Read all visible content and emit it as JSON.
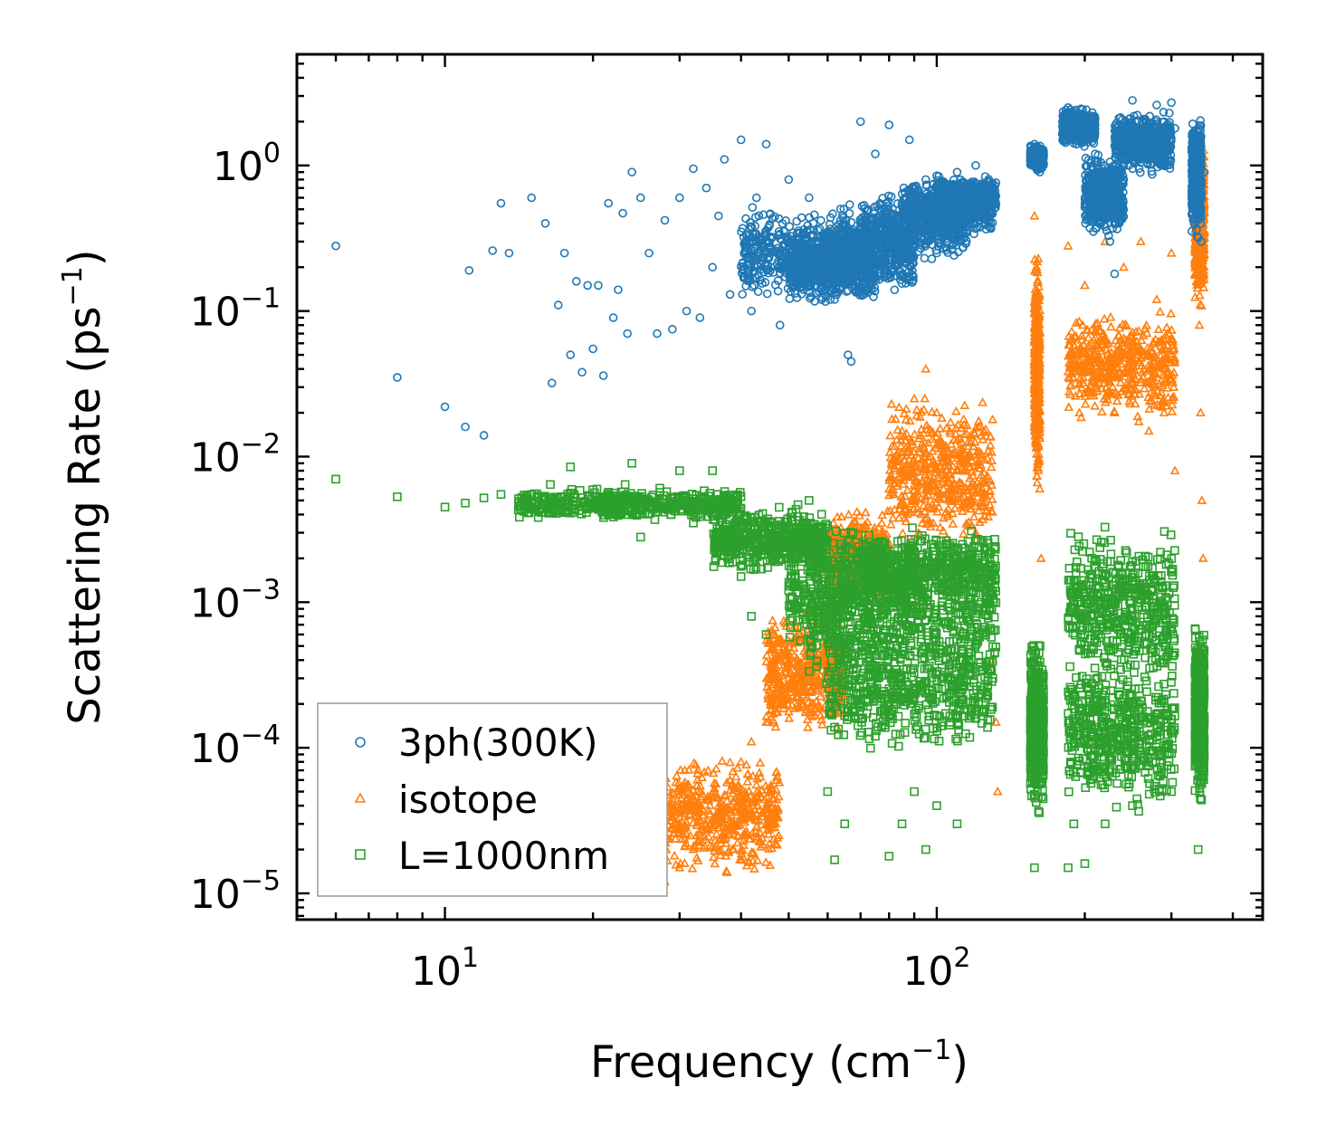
{
  "chart_data": {
    "type": "scatter",
    "title": "",
    "xlabel": "Frequency (cm",
    "xlabel_sup": "−1",
    "xlabel_end": ")",
    "ylabel": "Scattering Rate (ps",
    "ylabel_sup": "−1",
    "ylabel_end": ")",
    "xscale": "log",
    "yscale": "log",
    "xlim": [
      5,
      460
    ],
    "ylim": [
      6.6e-06,
      5.8
    ],
    "grid": false,
    "legend_position": "lower-left",
    "x_ticks": [
      {
        "value": 10,
        "base": "10",
        "exp": "1"
      },
      {
        "value": 100,
        "base": "10",
        "exp": "2"
      }
    ],
    "y_ticks": [
      {
        "value": 1,
        "base": "10",
        "exp": "0"
      },
      {
        "value": 0.1,
        "base": "10",
        "exp": "−1"
      },
      {
        "value": 0.01,
        "base": "10",
        "exp": "−2"
      },
      {
        "value": 0.001,
        "base": "10",
        "exp": "−3"
      },
      {
        "value": 0.0001,
        "base": "10",
        "exp": "−4"
      },
      {
        "value": 1e-05,
        "base": "10",
        "exp": "−5"
      }
    ],
    "series": [
      {
        "name": "3ph(300K)",
        "marker": "circle",
        "color": "#1f77b4",
        "points": [
          [
            6,
            0.28
          ],
          [
            8,
            0.035
          ],
          [
            10,
            0.022
          ],
          [
            11,
            0.016
          ],
          [
            11.2,
            0.19
          ],
          [
            12,
            0.014
          ],
          [
            12.5,
            0.26
          ],
          [
            13,
            0.55
          ],
          [
            13.5,
            0.25
          ],
          [
            15,
            0.6
          ],
          [
            16,
            0.4
          ],
          [
            16.5,
            0.032
          ],
          [
            17,
            0.11
          ],
          [
            17.5,
            0.25
          ],
          [
            18,
            0.05
          ],
          [
            18.5,
            0.16
          ],
          [
            19,
            0.038
          ],
          [
            19.5,
            0.15
          ],
          [
            20,
            0.055
          ],
          [
            20.5,
            0.15
          ],
          [
            21,
            0.036
          ],
          [
            21.5,
            0.55
          ],
          [
            22,
            0.09
          ],
          [
            22.5,
            0.14
          ],
          [
            23,
            0.47
          ],
          [
            23.5,
            0.07
          ],
          [
            24,
            0.9
          ],
          [
            25,
            0.6
          ],
          [
            26,
            0.25
          ],
          [
            27,
            0.07
          ],
          [
            28,
            0.42
          ],
          [
            29,
            0.075
          ],
          [
            30,
            0.6
          ],
          [
            31,
            0.1
          ],
          [
            32,
            0.95
          ],
          [
            33,
            0.09
          ],
          [
            34,
            0.7
          ],
          [
            35,
            0.2
          ],
          [
            36,
            0.45
          ],
          [
            37,
            1.1
          ],
          [
            38,
            0.13
          ],
          [
            40,
            1.5
          ],
          [
            41,
            0.3
          ],
          [
            42,
            0.1
          ],
          [
            43,
            0.6
          ],
          [
            45,
            1.4
          ],
          [
            46,
            0.2
          ],
          [
            48,
            0.08
          ],
          [
            50,
            0.8
          ],
          [
            52,
            0.25
          ],
          [
            55,
            0.6
          ],
          [
            57,
            0.15
          ],
          [
            60,
            0.35
          ],
          [
            62,
            0.12
          ],
          [
            65,
            0.25
          ],
          [
            66,
            0.05
          ],
          [
            67,
            0.045
          ],
          [
            70,
            2.0
          ],
          [
            72,
            0.4
          ],
          [
            75,
            1.2
          ],
          [
            78,
            0.2
          ],
          [
            80,
            1.9
          ],
          [
            85,
            0.35
          ],
          [
            88,
            1.5
          ],
          [
            90,
            0.5
          ],
          [
            95,
            0.8
          ],
          [
            100,
            0.25
          ],
          [
            105,
            0.4
          ],
          [
            110,
            0.9
          ],
          [
            115,
            0.55
          ],
          [
            120,
            1.0
          ],
          [
            125,
            0.7
          ],
          [
            130,
            0.6
          ],
          [
            158,
            1.4
          ],
          [
            160,
            1.2
          ],
          [
            162,
            0.9
          ],
          [
            185,
            2.5
          ],
          [
            190,
            2.2
          ],
          [
            200,
            1.8
          ],
          [
            210,
            1.2
          ],
          [
            220,
            0.6
          ],
          [
            225,
            0.3
          ],
          [
            230,
            0.18
          ],
          [
            235,
            0.4
          ],
          [
            240,
            0.8
          ],
          [
            250,
            2.8
          ],
          [
            260,
            1.6
          ],
          [
            270,
            1.3
          ],
          [
            280,
            2.6
          ],
          [
            290,
            2.0
          ],
          [
            300,
            2.7
          ],
          [
            305,
            1.8
          ],
          [
            340,
            0.6
          ],
          [
            345,
            0.3
          ],
          [
            350,
            0.9
          ]
        ],
        "clusters": [
          {
            "x": [
              40,
              70
            ],
            "y": [
              0.1,
              0.6
            ]
          },
          {
            "x": [
              50,
              75
            ],
            "y": [
              0.1,
              0.45
            ]
          },
          {
            "x": [
              60,
              90
            ],
            "y": [
              0.12,
              0.5
            ]
          },
          {
            "x": [
              70,
              115
            ],
            "y": [
              0.2,
              0.7
            ]
          },
          {
            "x": [
              85,
              130
            ],
            "y": [
              0.3,
              0.9
            ]
          },
          {
            "x": [
              100,
              132
            ],
            "y": [
              0.4,
              0.9
            ]
          },
          {
            "x": [
              180,
              210
            ],
            "y": [
              1.3,
              2.6
            ]
          },
          {
            "x": [
              200,
              240
            ],
            "y": [
              0.3,
              1.3
            ]
          },
          {
            "x": [
              230,
              300
            ],
            "y": [
              0.8,
              2.6
            ]
          },
          {
            "x": [
              155,
              165
            ],
            "y": [
              0.9,
              1.4
            ]
          },
          {
            "x": [
              330,
              345
            ],
            "y": [
              0.3,
              2.3
            ]
          }
        ]
      },
      {
        "name": "isotope",
        "marker": "triangle",
        "color": "#ff7f0e",
        "points": [
          [
            28,
            1.2e-05
          ],
          [
            30,
            1.5e-05
          ],
          [
            32,
            2e-05
          ],
          [
            34,
            3e-05
          ],
          [
            36,
            4.5e-05
          ],
          [
            38,
            6e-05
          ],
          [
            40,
            8e-05
          ],
          [
            42,
            0.00011
          ],
          [
            45,
            0.00015
          ],
          [
            48,
            0.00022
          ],
          [
            50,
            0.0003
          ],
          [
            55,
            0.0006
          ],
          [
            58,
            0.0008
          ],
          [
            60,
            0.0012
          ],
          [
            65,
            0.0015
          ],
          [
            70,
            0.0022
          ],
          [
            75,
            0.003
          ],
          [
            80,
            0.006
          ],
          [
            85,
            0.015
          ],
          [
            90,
            0.025
          ],
          [
            95,
            0.04
          ],
          [
            100,
            0.02
          ],
          [
            105,
            0.01
          ],
          [
            110,
            0.008
          ],
          [
            115,
            0.005
          ],
          [
            120,
            0.003
          ],
          [
            125,
            0.0015
          ],
          [
            130,
            0.0004
          ],
          [
            132,
            0.00015
          ],
          [
            133,
            5e-05
          ],
          [
            158,
            0.45
          ],
          [
            160,
            0.1
          ],
          [
            161,
            0.03
          ],
          [
            162,
            0.006
          ],
          [
            163,
            0.002
          ],
          [
            185,
            0.28
          ],
          [
            190,
            0.04
          ],
          [
            195,
            0.02
          ],
          [
            200,
            0.15
          ],
          [
            210,
            0.06
          ],
          [
            220,
            0.3
          ],
          [
            230,
            0.02
          ],
          [
            240,
            0.2
          ],
          [
            250,
            0.05
          ],
          [
            260,
            0.3
          ],
          [
            270,
            0.015
          ],
          [
            280,
            0.12
          ],
          [
            290,
            0.02
          ],
          [
            300,
            0.25
          ],
          [
            305,
            0.008
          ],
          [
            340,
            0.6
          ],
          [
            342,
            0.08
          ],
          [
            344,
            0.02
          ],
          [
            346,
            0.005
          ],
          [
            348,
            0.002
          ]
        ],
        "clusters": [
          {
            "x": [
              28,
              48
            ],
            "y": [
              1.2e-05,
              0.0001
            ]
          },
          {
            "x": [
              45,
              65
            ],
            "y": [
              0.0001,
              0.001
            ]
          },
          {
            "x": [
              60,
              80
            ],
            "y": [
              0.0008,
              0.005
            ]
          },
          {
            "x": [
              80,
              130
            ],
            "y": [
              0.002,
              0.03
            ]
          },
          {
            "x": [
              185,
              305
            ],
            "y": [
              0.015,
              0.12
            ]
          },
          {
            "x": [
              158,
              162
            ],
            "y": [
              0.005,
              0.3
            ]
          },
          {
            "x": [
              335,
              350
            ],
            "y": [
              0.1,
              1.5
            ]
          }
        ]
      },
      {
        "name": "L=1000nm",
        "marker": "square",
        "color": "#2ca02c",
        "points": [
          [
            6,
            0.007
          ],
          [
            8,
            0.0053
          ],
          [
            10,
            0.0045
          ],
          [
            11,
            0.0048
          ],
          [
            12,
            0.0052
          ],
          [
            13,
            0.0055
          ],
          [
            15,
            0.0055
          ],
          [
            17,
            0.0048
          ],
          [
            18,
            0.0085
          ],
          [
            20,
            0.0045
          ],
          [
            22,
            0.0048
          ],
          [
            24,
            0.009
          ],
          [
            25,
            0.0028
          ],
          [
            27,
            0.0045
          ],
          [
            30,
            0.008
          ],
          [
            32,
            0.0035
          ],
          [
            34,
            0.0045
          ],
          [
            35,
            0.008
          ],
          [
            38,
            0.0025
          ],
          [
            40,
            0.0015
          ],
          [
            42,
            0.0008
          ],
          [
            45,
            0.0006
          ],
          [
            48,
            0.002
          ],
          [
            50,
            0.0012
          ],
          [
            55,
            0.005
          ],
          [
            60,
            5e-05
          ],
          [
            62,
            1.7e-05
          ],
          [
            65,
            3e-05
          ],
          [
            70,
            0.0003
          ],
          [
            75,
            0.00012
          ],
          [
            80,
            1.8e-05
          ],
          [
            85,
            3e-05
          ],
          [
            90,
            5e-05
          ],
          [
            95,
            2e-05
          ],
          [
            100,
            4e-05
          ],
          [
            110,
            3e-05
          ],
          [
            120,
            0.0008
          ],
          [
            130,
            0.0003
          ],
          [
            158,
            1.5e-05
          ],
          [
            160,
            0.0001
          ],
          [
            185,
            1.5e-05
          ],
          [
            190,
            3e-05
          ],
          [
            200,
            1.6e-05
          ],
          [
            220,
            3e-05
          ],
          [
            250,
            4e-05
          ],
          [
            300,
            5e-05
          ],
          [
            340,
            2e-05
          ],
          [
            345,
            0.0001
          ]
        ],
        "clusters": [
          {
            "x": [
              14,
              40
            ],
            "y": [
              0.0035,
              0.0065
            ]
          },
          {
            "x": [
              35,
              60
            ],
            "y": [
              0.0015,
              0.005
            ]
          },
          {
            "x": [
              50,
              90
            ],
            "y": [
              0.0004,
              0.004
            ]
          },
          {
            "x": [
              55,
              132
            ],
            "y": [
              0.0002,
              0.003
            ]
          },
          {
            "x": [
              70,
              132
            ],
            "y": [
              0.0008,
              0.0035
            ]
          },
          {
            "x": [
              60,
              130
            ],
            "y": [
              8e-05,
              0.0008
            ]
          },
          {
            "x": [
              155,
              165
            ],
            "y": [
              3e-05,
              0.0007
            ]
          },
          {
            "x": [
              185,
              305
            ],
            "y": [
              0.0002,
              0.004
            ]
          },
          {
            "x": [
              185,
              305
            ],
            "y": [
              3e-05,
              0.0005
            ]
          },
          {
            "x": [
              335,
              350
            ],
            "y": [
              4e-05,
              0.0008
            ]
          }
        ]
      }
    ]
  }
}
